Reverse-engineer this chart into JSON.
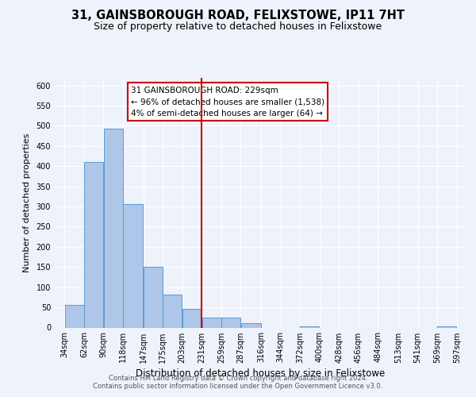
{
  "title": "31, GAINSBOROUGH ROAD, FELIXSTOWE, IP11 7HT",
  "subtitle": "Size of property relative to detached houses in Felixstowe",
  "xlabel": "Distribution of detached houses by size in Felixstowe",
  "ylabel": "Number of detached properties",
  "bar_left_edges": [
    34,
    62,
    90,
    118,
    147,
    175,
    203,
    231,
    259,
    287,
    316,
    344,
    372,
    400,
    428,
    456,
    484,
    513,
    541,
    569
  ],
  "bar_widths": [
    28,
    28,
    28,
    29,
    28,
    28,
    28,
    28,
    28,
    29,
    28,
    28,
    28,
    28,
    28,
    28,
    29,
    28,
    28,
    28
  ],
  "bar_heights": [
    57,
    410,
    494,
    307,
    150,
    82,
    46,
    25,
    25,
    10,
    0,
    0,
    3,
    0,
    0,
    0,
    0,
    0,
    0,
    3
  ],
  "bar_color": "#aec6e8",
  "bar_edge_color": "#5b9bd5",
  "reference_line_x": 231,
  "reference_line_color": "#cc0000",
  "annotation_title": "31 GAINSBOROUGH ROAD: 229sqm",
  "annotation_line1": "← 96% of detached houses are smaller (1,538)",
  "annotation_line2": "4% of semi-detached houses are larger (64) →",
  "annotation_box_color": "#cc0000",
  "ylim": [
    0,
    620
  ],
  "yticks": [
    0,
    50,
    100,
    150,
    200,
    250,
    300,
    350,
    400,
    450,
    500,
    550,
    600
  ],
  "x_tick_labels": [
    "34sqm",
    "62sqm",
    "90sqm",
    "118sqm",
    "147sqm",
    "175sqm",
    "203sqm",
    "231sqm",
    "259sqm",
    "287sqm",
    "316sqm",
    "344sqm",
    "372sqm",
    "400sqm",
    "428sqm",
    "456sqm",
    "484sqm",
    "513sqm",
    "541sqm",
    "569sqm",
    "597sqm"
  ],
  "x_tick_positions": [
    34,
    62,
    90,
    118,
    147,
    175,
    203,
    231,
    259,
    287,
    316,
    344,
    372,
    400,
    428,
    456,
    484,
    513,
    541,
    569,
    597
  ],
  "footer_line1": "Contains HM Land Registry data © Crown copyright and database right 2024.",
  "footer_line2": "Contains public sector information licensed under the Open Government Licence v3.0.",
  "background_color": "#eef2fa",
  "grid_color": "#ffffff",
  "title_fontsize": 10.5,
  "subtitle_fontsize": 9,
  "xlabel_fontsize": 8.5,
  "ylabel_fontsize": 8,
  "tick_fontsize": 7,
  "footer_fontsize": 6,
  "annotation_fontsize": 7.5,
  "xlim_min": 20,
  "xlim_max": 611
}
